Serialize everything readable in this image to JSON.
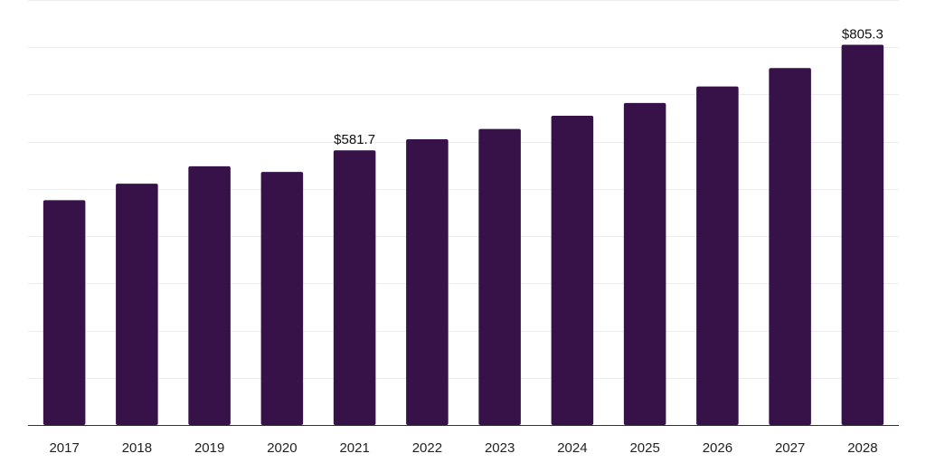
{
  "chart_data": {
    "type": "bar",
    "categories": [
      "2017",
      "2018",
      "2019",
      "2020",
      "2021",
      "2022",
      "2023",
      "2024",
      "2025",
      "2026",
      "2027",
      "2028"
    ],
    "values": [
      476.0,
      511.0,
      548.0,
      536.0,
      581.7,
      605.0,
      627.0,
      655.0,
      682.0,
      717.0,
      756.0,
      805.3
    ],
    "data_labels": [
      "",
      "",
      "",
      "",
      "$581.7",
      "",
      "",
      "",
      "",
      "",
      "",
      "$805.3"
    ],
    "ylim": [
      0,
      900
    ],
    "grid": true,
    "bar_color": "#361249",
    "title": "",
    "xlabel": "",
    "ylabel": ""
  }
}
